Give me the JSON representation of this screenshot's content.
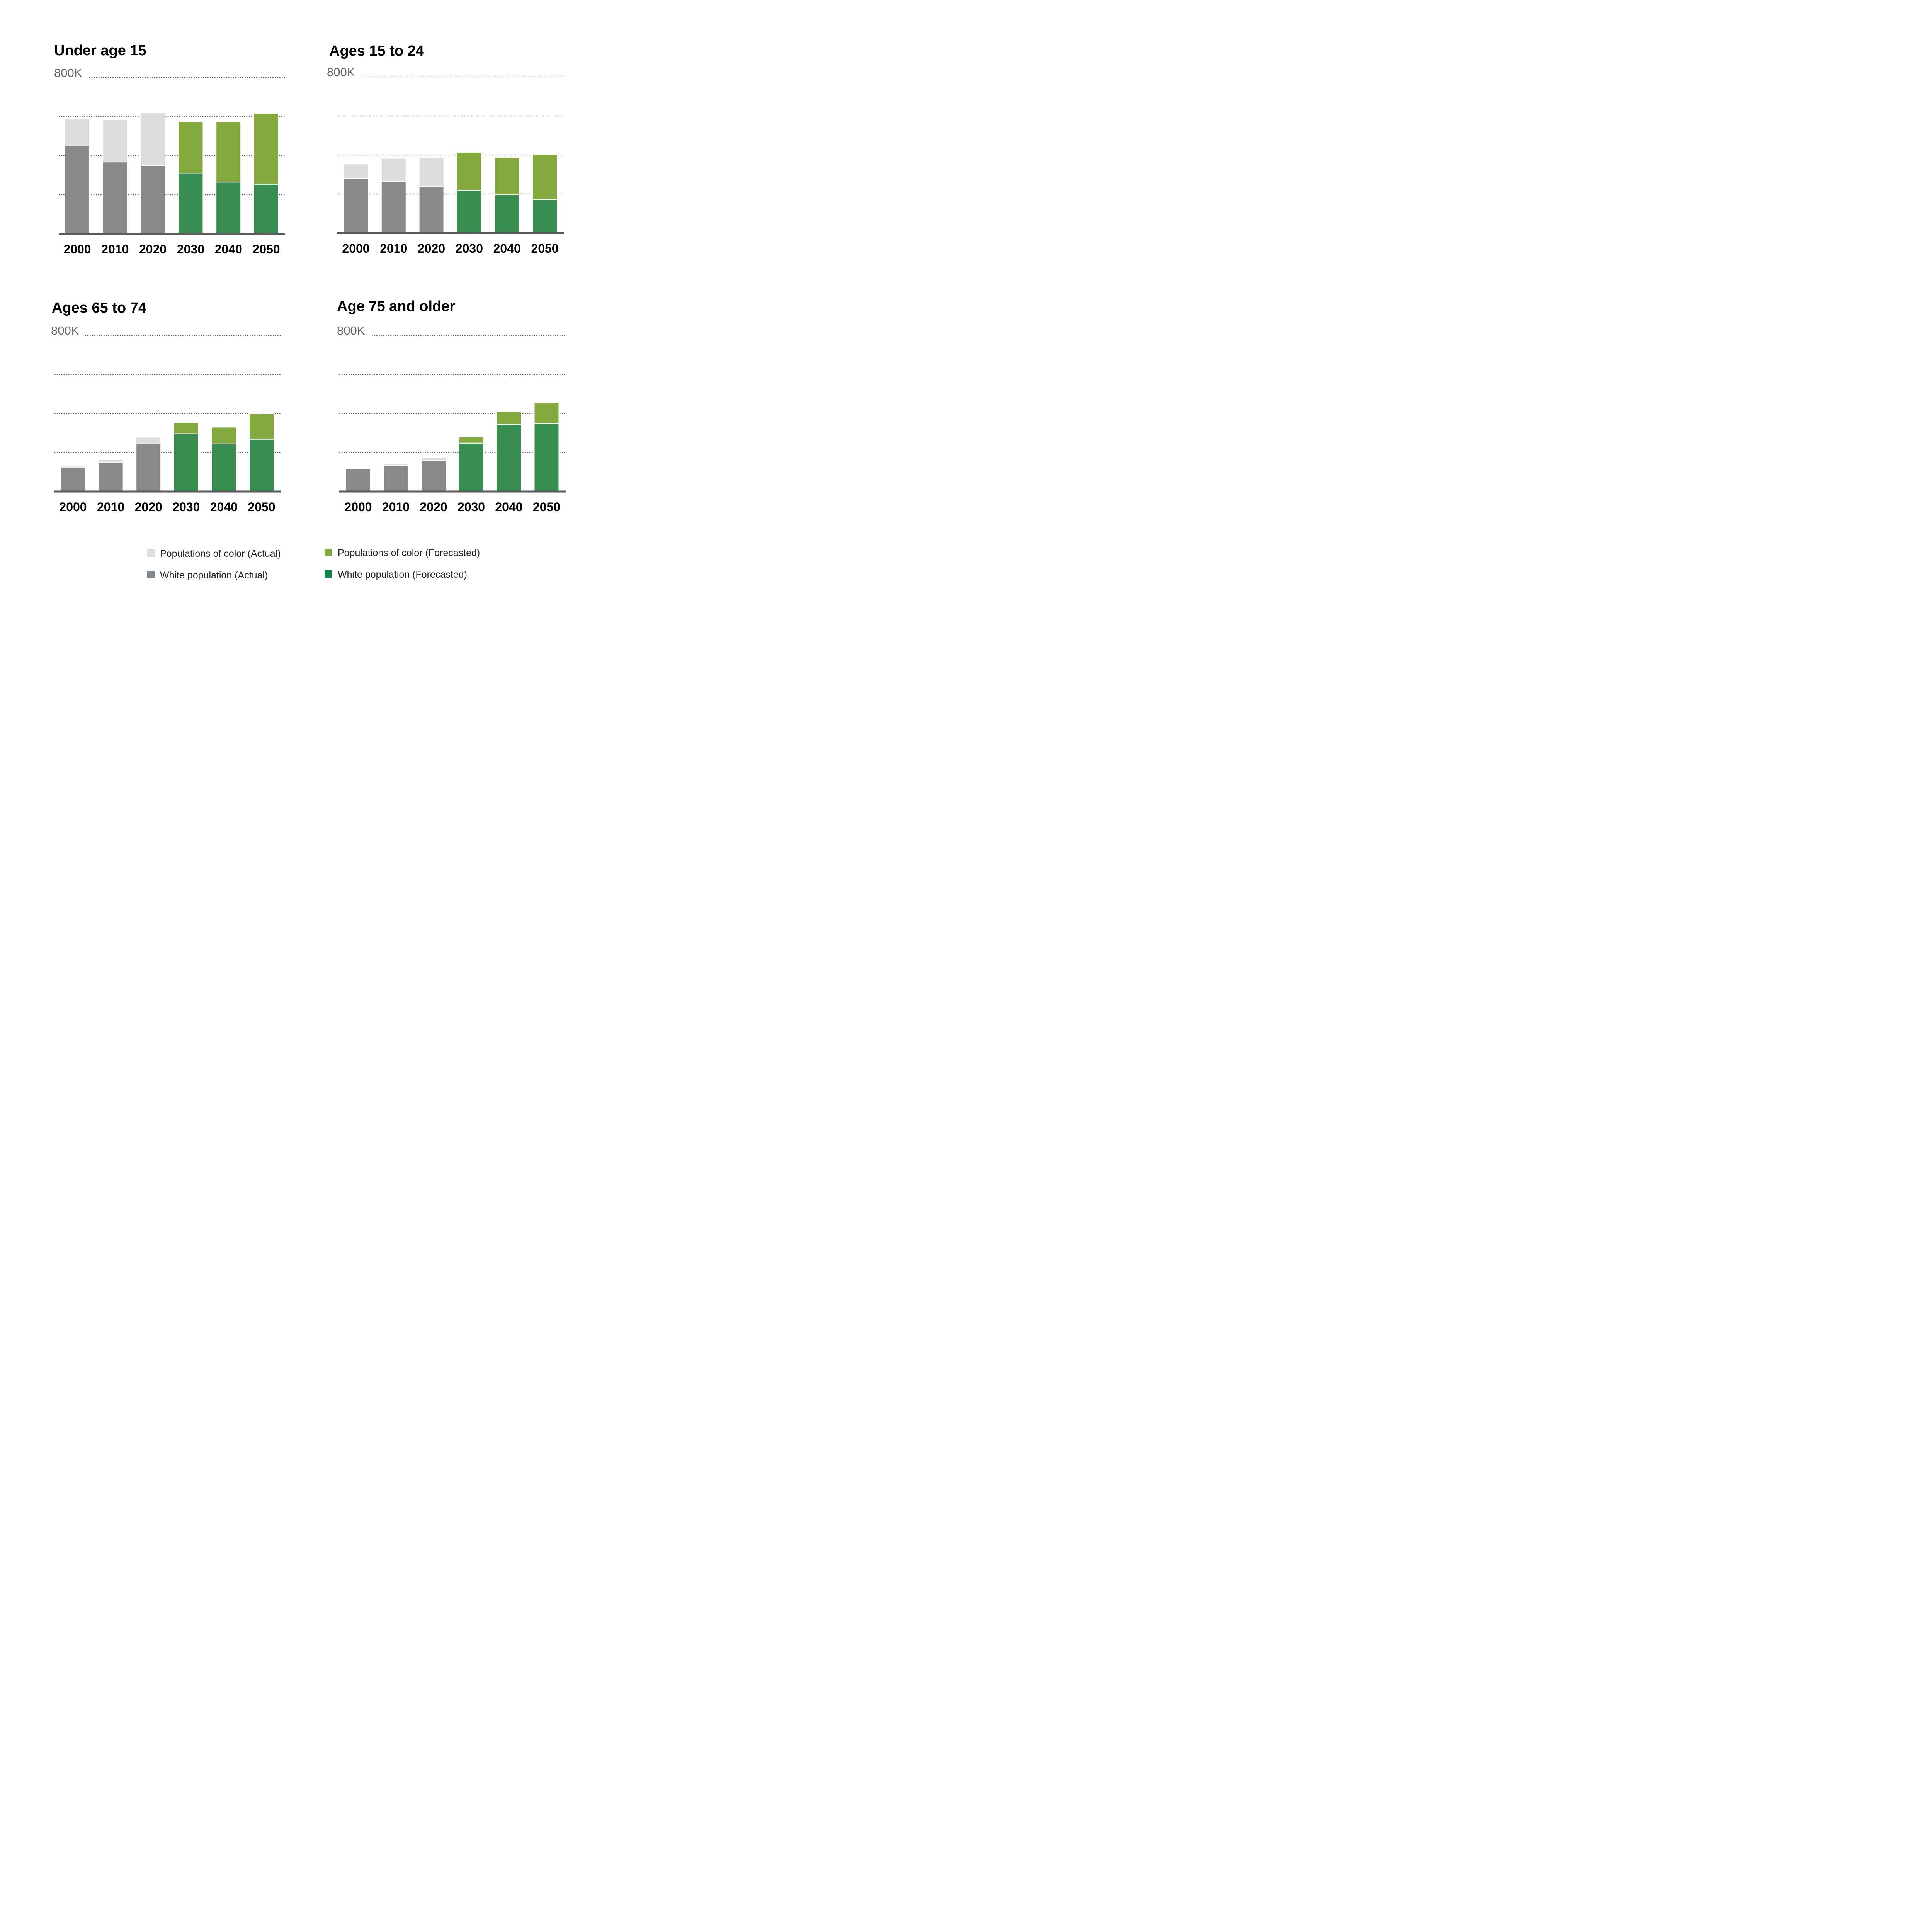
{
  "colors": {
    "poc_actual": "#dcdcdc",
    "white_actual": "#898989",
    "poc_forecast": "#84aa3f",
    "white_forecast": "#378c4f",
    "legend_white_actual": "#7f8890",
    "legend_white_forecast": "#0f8447"
  },
  "legend": [
    {
      "label": "Populations of color (Actual)",
      "color_key": "poc_actual"
    },
    {
      "label": "White population (Actual)",
      "color_key": "legend_white_actual"
    },
    {
      "label": "Populations of color (Forecasted)",
      "color_key": "poc_forecast"
    },
    {
      "label": "White population (Forecasted)",
      "color_key": "legend_white_forecast"
    }
  ],
  "chart_data": [
    {
      "type": "bar",
      "stacked": true,
      "title": "Under age 15",
      "top_tick_label": "800K",
      "ylim": [
        0,
        800000
      ],
      "yticks": [
        200000,
        400000,
        600000,
        800000
      ],
      "grid": true,
      "categories": [
        "2000",
        "2010",
        "2020",
        "2030",
        "2040",
        "2050"
      ],
      "forecast_from": "2030",
      "series": [
        {
          "role": "white",
          "values": [
            450000,
            368000,
            350000,
            310000,
            265000,
            254000
          ]
        },
        {
          "role": "people_of_color",
          "values": [
            138000,
            218000,
            270000,
            264000,
            309000,
            364000
          ]
        }
      ]
    },
    {
      "type": "bar",
      "stacked": true,
      "title": "Ages 15 to 24",
      "top_tick_label": "800K",
      "ylim": [
        0,
        800000
      ],
      "yticks": [
        200000,
        400000,
        600000,
        800000
      ],
      "grid": true,
      "categories": [
        "2000",
        "2010",
        "2020",
        "2030",
        "2040",
        "2050"
      ],
      "forecast_from": "2030",
      "series": [
        {
          "role": "white",
          "values": [
            280000,
            263000,
            237000,
            218000,
            196000,
            172000
          ]
        },
        {
          "role": "people_of_color",
          "values": [
            74000,
            120000,
            148000,
            196000,
            192000,
            232000
          ]
        }
      ]
    },
    {
      "type": "bar",
      "stacked": true,
      "title": "Ages 65 to 74",
      "top_tick_label": "800K",
      "ylim": [
        0,
        800000
      ],
      "yticks": [
        200000,
        400000,
        600000,
        800000
      ],
      "grid": true,
      "categories": [
        "2000",
        "2010",
        "2020",
        "2030",
        "2040",
        "2050"
      ],
      "forecast_from": "2030",
      "series": [
        {
          "role": "white",
          "values": [
            122000,
            148000,
            244000,
            296000,
            244000,
            268000
          ]
        },
        {
          "role": "people_of_color",
          "values": [
            8000,
            16000,
            34000,
            58000,
            86000,
            130000
          ]
        }
      ]
    },
    {
      "type": "bar",
      "stacked": true,
      "title": "Age 75 and older",
      "top_tick_label": "800K",
      "ylim": [
        0,
        800000
      ],
      "yticks": [
        200000,
        400000,
        600000,
        800000
      ],
      "grid": true,
      "categories": [
        "2000",
        "2010",
        "2020",
        "2030",
        "2040",
        "2050"
      ],
      "forecast_from": "2030",
      "series": [
        {
          "role": "white",
          "values": [
            116000,
            132000,
            158000,
            248000,
            344000,
            348000
          ]
        },
        {
          "role": "people_of_color",
          "values": [
            4000,
            12000,
            16000,
            32000,
            66000,
            108000
          ]
        }
      ]
    }
  ]
}
